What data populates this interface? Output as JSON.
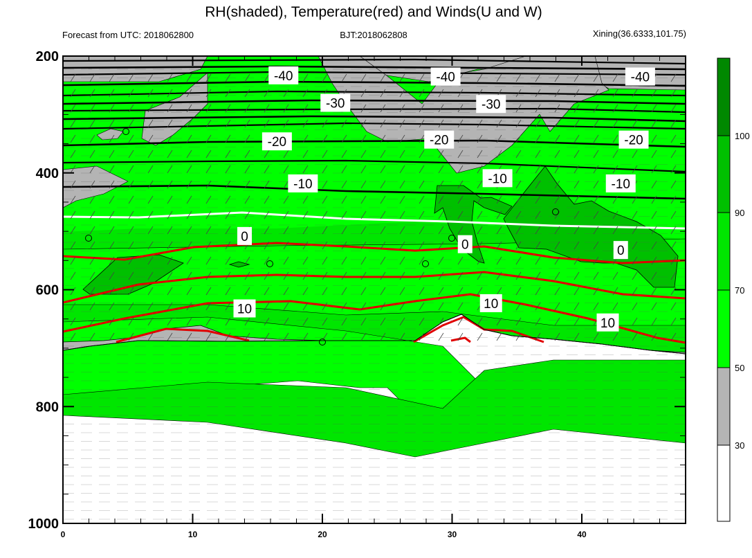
{
  "chart_data": {
    "type": "contour",
    "title": "RH(shaded), Temperature(red) and Winds(U and W)",
    "subtitle_left": "Forecast from UTC: 2018062800",
    "subtitle_center": "BJT:2018062808",
    "subtitle_right": "Xining(36.6333,101.75)",
    "x_range": [
      0,
      48
    ],
    "x_ticks": [
      0,
      10,
      20,
      30,
      40
    ],
    "y_range": [
      1000,
      200
    ],
    "y_ticks": [
      200,
      400,
      600,
      800,
      1000
    ],
    "colorbar": {
      "levels": [
        30,
        50,
        70,
        90,
        100
      ],
      "colors": [
        "#ffffff",
        "#b4b4b4",
        "#00ff00",
        "#00e600",
        "#00c000",
        "#008800"
      ]
    },
    "temperature_labels": [
      {
        "text": "-40",
        "x": 17,
        "p": 233
      },
      {
        "text": "-40",
        "x": 29.5,
        "p": 235
      },
      {
        "text": "-40",
        "x": 44.5,
        "p": 235
      },
      {
        "text": "-30",
        "x": 21,
        "p": 280
      },
      {
        "text": "-30",
        "x": 33,
        "p": 282
      },
      {
        "text": "-20",
        "x": 16.5,
        "p": 346
      },
      {
        "text": "-20",
        "x": 29,
        "p": 343
      },
      {
        "text": "-20",
        "x": 44,
        "p": 343
      },
      {
        "text": "-10",
        "x": 18.5,
        "p": 418
      },
      {
        "text": "-10",
        "x": 33.5,
        "p": 409
      },
      {
        "text": "-10",
        "x": 43,
        "p": 418
      },
      {
        "text": "0",
        "x": 14,
        "p": 508
      },
      {
        "text": "0",
        "x": 31,
        "p": 522
      },
      {
        "text": "0",
        "x": 43,
        "p": 532
      },
      {
        "text": "10",
        "x": 14,
        "p": 632
      },
      {
        "text": "10",
        "x": 33,
        "p": 623
      },
      {
        "text": "10",
        "x": 42,
        "p": 656
      }
    ]
  }
}
